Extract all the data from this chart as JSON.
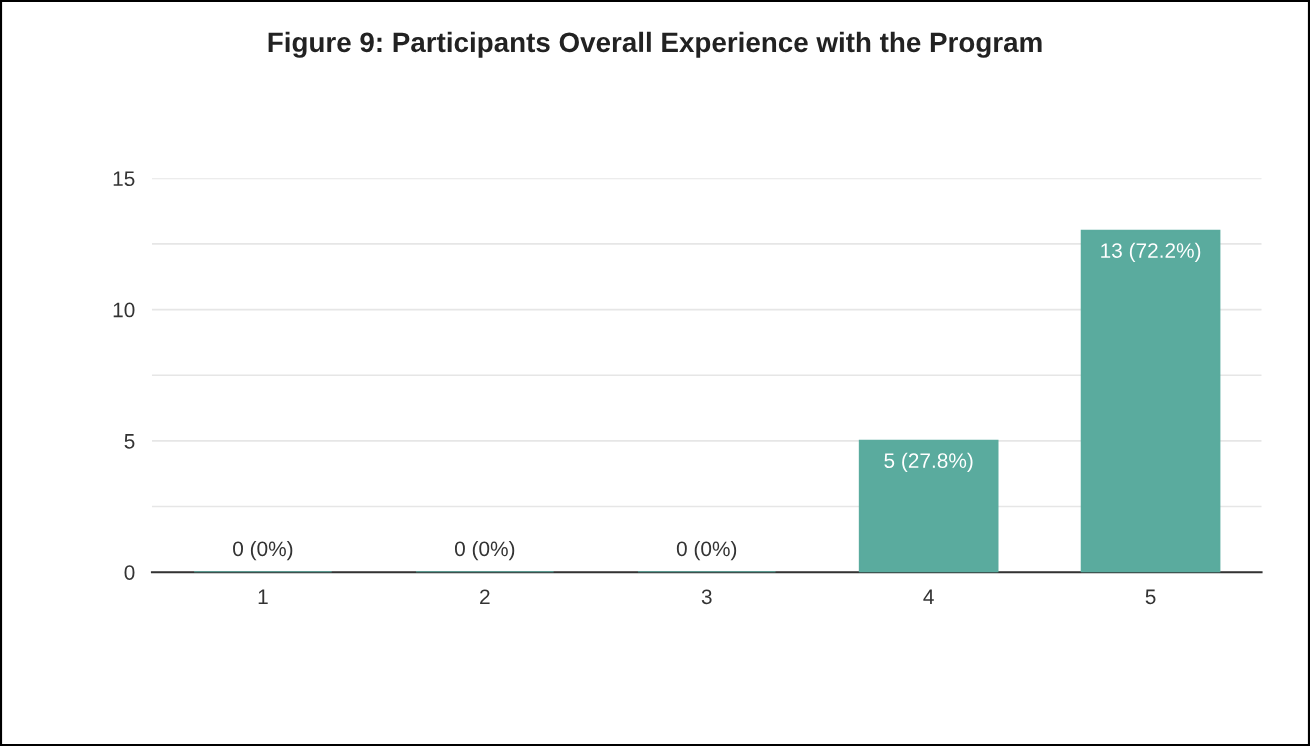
{
  "chart_data": {
    "type": "bar",
    "title": "Figure 9: Participants Overall Experience with the Program",
    "categories": [
      "1",
      "2",
      "3",
      "4",
      "5"
    ],
    "values": [
      0,
      0,
      0,
      5,
      13
    ],
    "value_labels": [
      "0 (0%)",
      "0 (0%)",
      "0 (0%)",
      "5 (27.8%)",
      "13 (72.2%)"
    ],
    "color": "#5aab9e",
    "ylim": [
      0,
      15
    ],
    "yticks": [
      0,
      {
        "value": 2.5,
        "label": null
      },
      5,
      {
        "value": 7.5,
        "label": null
      },
      10,
      {
        "value": 12.5,
        "label": null
      },
      15
    ],
    "grid": "y"
  }
}
